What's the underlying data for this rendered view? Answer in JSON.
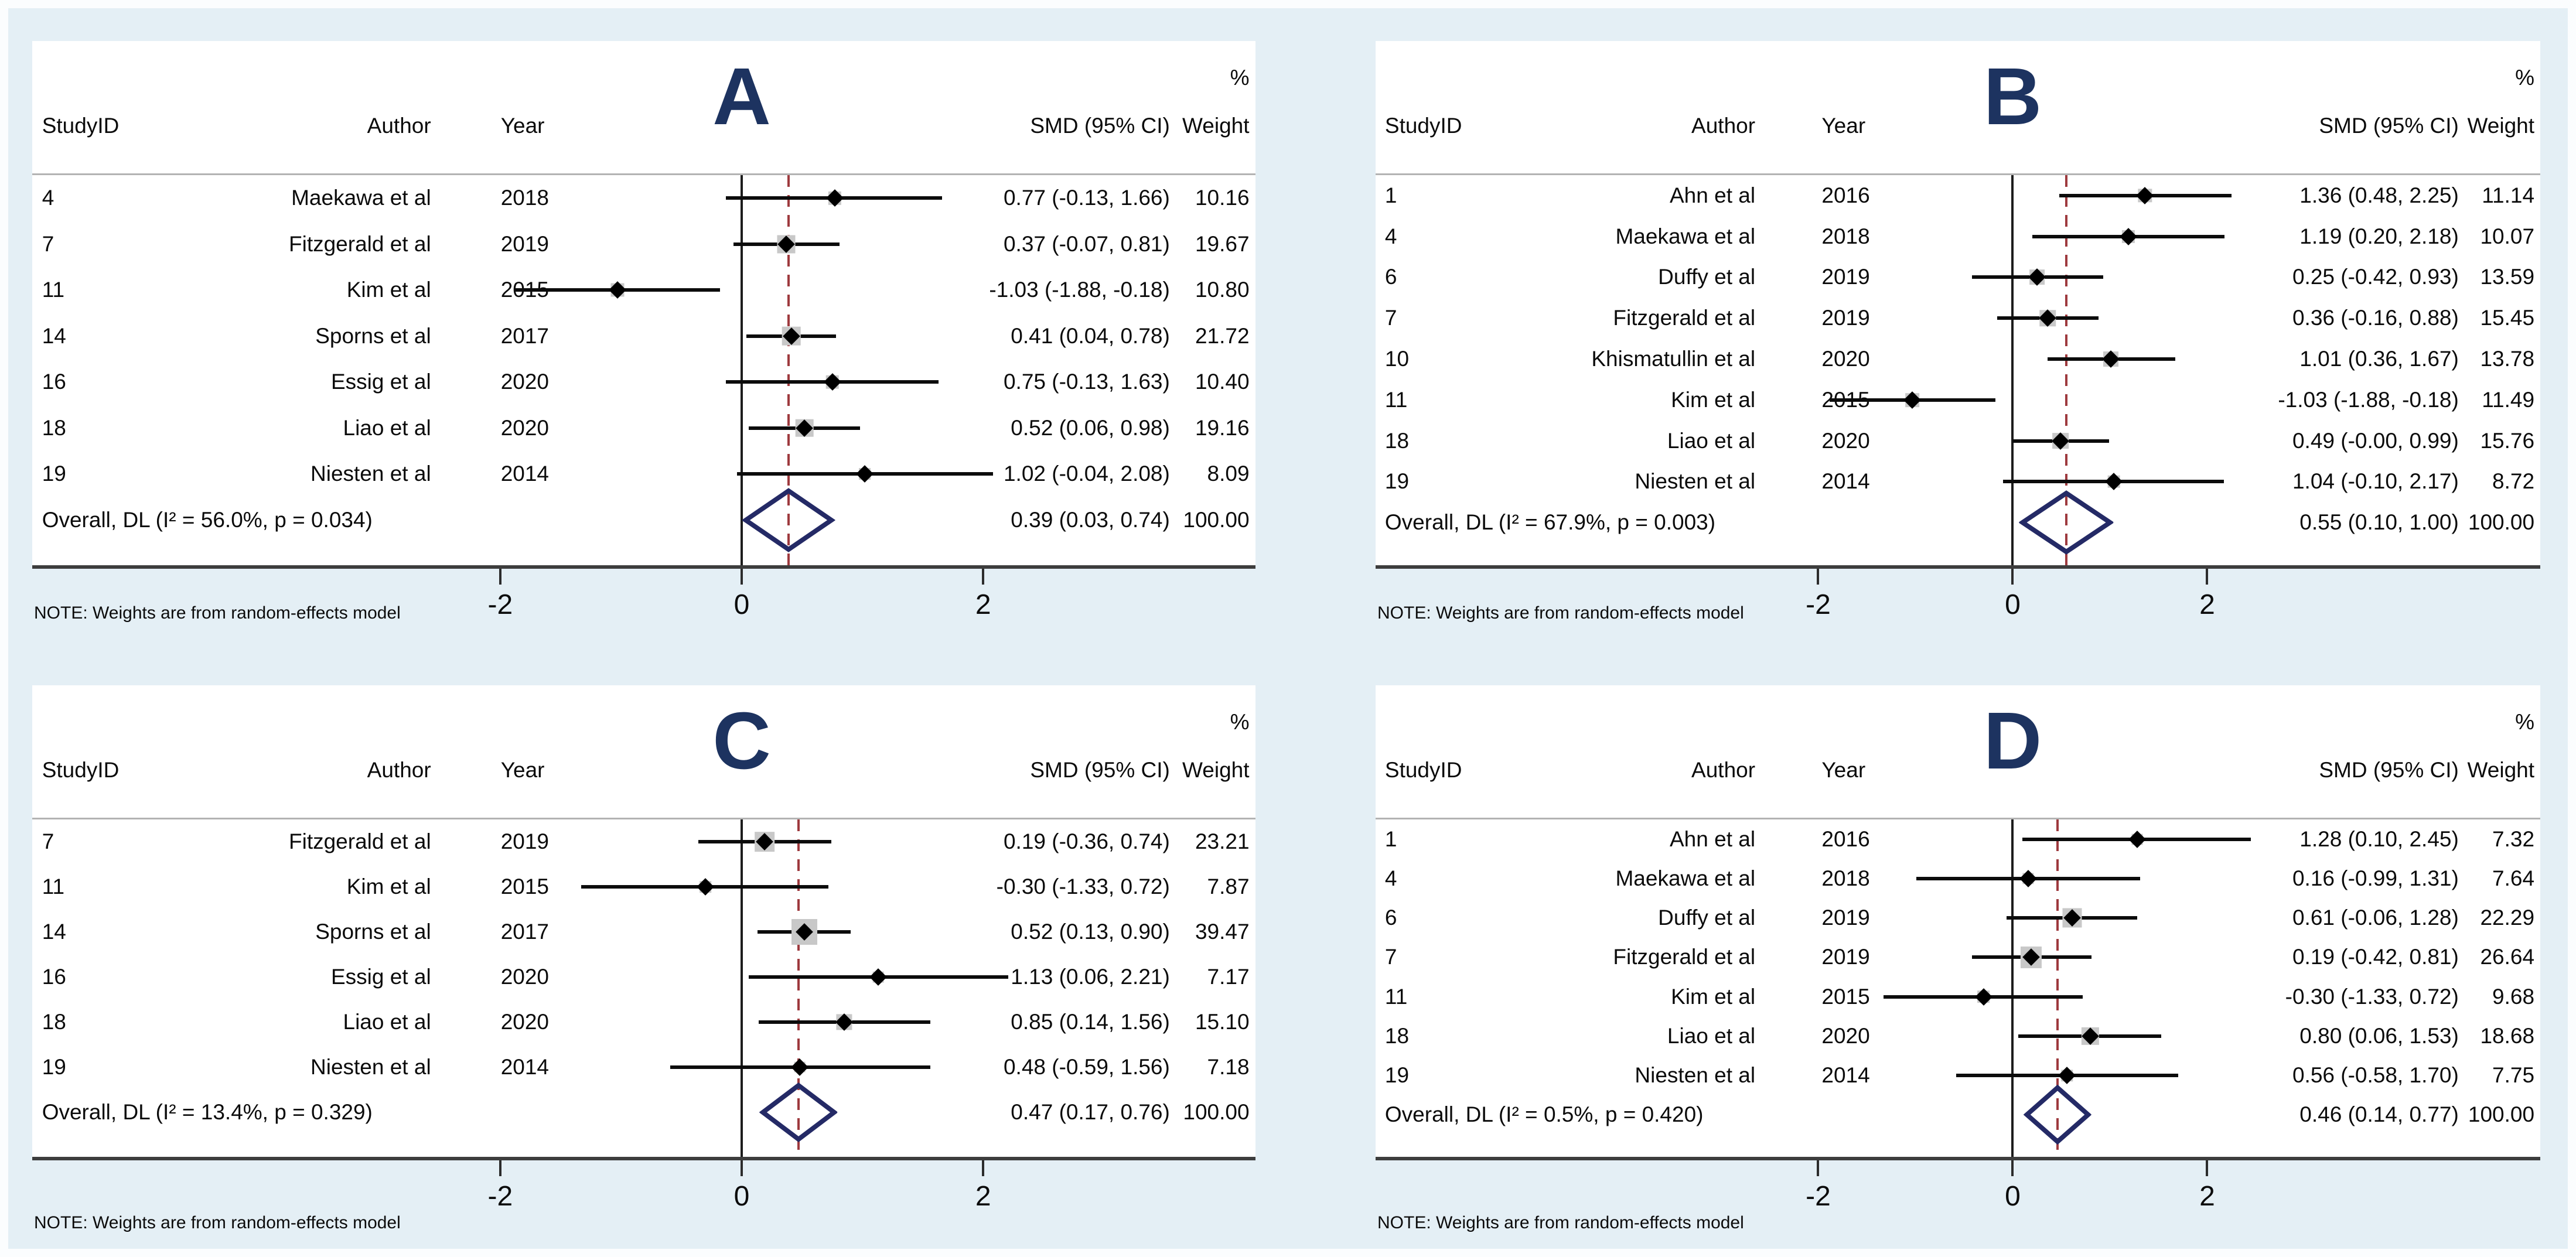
{
  "figure": {
    "note": "NOTE: Weights are from random-effects model",
    "columns": {
      "studyid": "StudyID",
      "author": "Author",
      "year": "Year",
      "smd": "SMD (95% CI)",
      "pct": "%",
      "weight": "Weight"
    },
    "colors": {
      "background": "#e4eff5",
      "panel": "#ffffff",
      "letter_navy": "#1d3360",
      "diamond_navy": "#242a66",
      "dashed_line_red": "#9e3a3e",
      "marker_black": "#000000",
      "weight_box_gray": "#c8c8c8",
      "axis_dark": "#3d3d3d",
      "header_rule_gray": "#b3b3b3"
    }
  },
  "chart_data": [
    {
      "type": "scatter",
      "subtype": "forest",
      "panel": "A",
      "x_ticks": [
        -2,
        0,
        2
      ],
      "xlim": [
        -3.3,
        3.6
      ],
      "overall": {
        "label": "Overall, DL (I² = 56.0%, p = 0.034)",
        "smd": 0.39,
        "ci_low": 0.03,
        "ci_high": 0.74,
        "smd_text": "0.39 (0.03, 0.74)",
        "weight_text": "100.00"
      },
      "studies": [
        {
          "study_id": "4",
          "author": "Maekawa et al",
          "year": "2018",
          "smd": 0.77,
          "ci_low": -0.13,
          "ci_high": 1.66,
          "smd_text": "0.77 (-0.13, 1.66)",
          "weight": 10.16,
          "weight_text": "10.16"
        },
        {
          "study_id": "7",
          "author": "Fitzgerald et al",
          "year": "2019",
          "smd": 0.37,
          "ci_low": -0.07,
          "ci_high": 0.81,
          "smd_text": "0.37 (-0.07, 0.81)",
          "weight": 19.67,
          "weight_text": "19.67"
        },
        {
          "study_id": "11",
          "author": "Kim et al",
          "year": "2015",
          "smd": -1.03,
          "ci_low": -1.88,
          "ci_high": -0.18,
          "smd_text": "-1.03 (-1.88, -0.18)",
          "weight": 10.8,
          "weight_text": "10.80"
        },
        {
          "study_id": "14",
          "author": "Sporns et al",
          "year": "2017",
          "smd": 0.41,
          "ci_low": 0.04,
          "ci_high": 0.78,
          "smd_text": "0.41 (0.04, 0.78)",
          "weight": 21.72,
          "weight_text": "21.72"
        },
        {
          "study_id": "16",
          "author": "Essig et al",
          "year": "2020",
          "smd": 0.75,
          "ci_low": -0.13,
          "ci_high": 1.63,
          "smd_text": "0.75 (-0.13, 1.63)",
          "weight": 10.4,
          "weight_text": "10.40"
        },
        {
          "study_id": "18",
          "author": "Liao et al",
          "year": "2020",
          "smd": 0.52,
          "ci_low": 0.06,
          "ci_high": 0.98,
          "smd_text": "0.52 (0.06, 0.98)",
          "weight": 19.16,
          "weight_text": "19.16"
        },
        {
          "study_id": "19",
          "author": "Niesten et al",
          "year": "2014",
          "smd": 1.02,
          "ci_low": -0.04,
          "ci_high": 2.08,
          "smd_text": "1.02 (-0.04, 2.08)",
          "weight": 8.09,
          "weight_text": "8.09"
        }
      ]
    },
    {
      "type": "scatter",
      "subtype": "forest",
      "panel": "B",
      "x_ticks": [
        -2,
        0,
        2
      ],
      "xlim": [
        -3.3,
        3.6
      ],
      "overall": {
        "label": "Overall, DL (I² = 67.9%, p = 0.003)",
        "smd": 0.55,
        "ci_low": 0.1,
        "ci_high": 1.0,
        "smd_text": "0.55 (0.10, 1.00)",
        "weight_text": "100.00"
      },
      "studies": [
        {
          "study_id": "1",
          "author": "Ahn et al",
          "year": "2016",
          "smd": 1.36,
          "ci_low": 0.48,
          "ci_high": 2.25,
          "smd_text": "1.36 (0.48, 2.25)",
          "weight": 11.14,
          "weight_text": "11.14"
        },
        {
          "study_id": "4",
          "author": "Maekawa et al",
          "year": "2018",
          "smd": 1.19,
          "ci_low": 0.2,
          "ci_high": 2.18,
          "smd_text": "1.19 (0.20, 2.18)",
          "weight": 10.07,
          "weight_text": "10.07"
        },
        {
          "study_id": "6",
          "author": "Duffy et al",
          "year": "2019",
          "smd": 0.25,
          "ci_low": -0.42,
          "ci_high": 0.93,
          "smd_text": "0.25 (-0.42, 0.93)",
          "weight": 13.59,
          "weight_text": "13.59"
        },
        {
          "study_id": "7",
          "author": "Fitzgerald et al",
          "year": "2019",
          "smd": 0.36,
          "ci_low": -0.16,
          "ci_high": 0.88,
          "smd_text": "0.36 (-0.16, 0.88)",
          "weight": 15.45,
          "weight_text": "15.45"
        },
        {
          "study_id": "10",
          "author": "Khismatullin et al",
          "year": "2020",
          "smd": 1.01,
          "ci_low": 0.36,
          "ci_high": 1.67,
          "smd_text": "1.01 (0.36, 1.67)",
          "weight": 13.78,
          "weight_text": "13.78"
        },
        {
          "study_id": "11",
          "author": "Kim et al",
          "year": "2015",
          "smd": -1.03,
          "ci_low": -1.88,
          "ci_high": -0.18,
          "smd_text": "-1.03 (-1.88, -0.18)",
          "weight": 11.49,
          "weight_text": "11.49"
        },
        {
          "study_id": "18",
          "author": "Liao et al",
          "year": "2020",
          "smd": 0.49,
          "ci_low": -0.0,
          "ci_high": 0.99,
          "smd_text": "0.49 (-0.00, 0.99)",
          "weight": 15.76,
          "weight_text": "15.76"
        },
        {
          "study_id": "19",
          "author": "Niesten et al",
          "year": "2014",
          "smd": 1.04,
          "ci_low": -0.1,
          "ci_high": 2.17,
          "smd_text": "1.04 (-0.10, 2.17)",
          "weight": 8.72,
          "weight_text": "8.72"
        }
      ]
    },
    {
      "type": "scatter",
      "subtype": "forest",
      "panel": "C",
      "x_ticks": [
        -2,
        0,
        2
      ],
      "xlim": [
        -3.3,
        3.6
      ],
      "overall": {
        "label": "Overall, DL (I² = 13.4%, p = 0.329)",
        "smd": 0.47,
        "ci_low": 0.17,
        "ci_high": 0.76,
        "smd_text": "0.47 (0.17, 0.76)",
        "weight_text": "100.00"
      },
      "studies": [
        {
          "study_id": "7",
          "author": "Fitzgerald et al",
          "year": "2019",
          "smd": 0.19,
          "ci_low": -0.36,
          "ci_high": 0.74,
          "smd_text": "0.19 (-0.36, 0.74)",
          "weight": 23.21,
          "weight_text": "23.21"
        },
        {
          "study_id": "11",
          "author": "Kim et al",
          "year": "2015",
          "smd": -0.3,
          "ci_low": -1.33,
          "ci_high": 0.72,
          "smd_text": "-0.30 (-1.33, 0.72)",
          "weight": 7.87,
          "weight_text": "7.87"
        },
        {
          "study_id": "14",
          "author": "Sporns et al",
          "year": "2017",
          "smd": 0.52,
          "ci_low": 0.13,
          "ci_high": 0.9,
          "smd_text": "0.52 (0.13, 0.90)",
          "weight": 39.47,
          "weight_text": "39.47"
        },
        {
          "study_id": "16",
          "author": "Essig et al",
          "year": "2020",
          "smd": 1.13,
          "ci_low": 0.06,
          "ci_high": 2.21,
          "smd_text": "1.13 (0.06, 2.21)",
          "weight": 7.17,
          "weight_text": "7.17"
        },
        {
          "study_id": "18",
          "author": "Liao et al",
          "year": "2020",
          "smd": 0.85,
          "ci_low": 0.14,
          "ci_high": 1.56,
          "smd_text": "0.85 (0.14, 1.56)",
          "weight": 15.1,
          "weight_text": "15.10"
        },
        {
          "study_id": "19",
          "author": "Niesten et al",
          "year": "2014",
          "smd": 0.48,
          "ci_low": -0.59,
          "ci_high": 1.56,
          "smd_text": "0.48 (-0.59, 1.56)",
          "weight": 7.18,
          "weight_text": "7.18"
        }
      ]
    },
    {
      "type": "scatter",
      "subtype": "forest",
      "panel": "D",
      "x_ticks": [
        -2,
        0,
        2
      ],
      "xlim": [
        -3.3,
        3.6
      ],
      "overall": {
        "label": "Overall, DL (I² = 0.5%, p = 0.420)",
        "smd": 0.46,
        "ci_low": 0.14,
        "ci_high": 0.77,
        "smd_text": "0.46 (0.14, 0.77)",
        "weight_text": "100.00"
      },
      "studies": [
        {
          "study_id": "1",
          "author": "Ahn et al",
          "year": "2016",
          "smd": 1.28,
          "ci_low": 0.1,
          "ci_high": 2.45,
          "smd_text": "1.28 (0.10, 2.45)",
          "weight": 7.32,
          "weight_text": "7.32"
        },
        {
          "study_id": "4",
          "author": "Maekawa et al",
          "year": "2018",
          "smd": 0.16,
          "ci_low": -0.99,
          "ci_high": 1.31,
          "smd_text": "0.16 (-0.99, 1.31)",
          "weight": 7.64,
          "weight_text": "7.64"
        },
        {
          "study_id": "6",
          "author": "Duffy et al",
          "year": "2019",
          "smd": 0.61,
          "ci_low": -0.06,
          "ci_high": 1.28,
          "smd_text": "0.61 (-0.06, 1.28)",
          "weight": 22.29,
          "weight_text": "22.29"
        },
        {
          "study_id": "7",
          "author": "Fitzgerald et al",
          "year": "2019",
          "smd": 0.19,
          "ci_low": -0.42,
          "ci_high": 0.81,
          "smd_text": "0.19 (-0.42, 0.81)",
          "weight": 26.64,
          "weight_text": "26.64"
        },
        {
          "study_id": "11",
          "author": "Kim et al",
          "year": "2015",
          "smd": -0.3,
          "ci_low": -1.33,
          "ci_high": 0.72,
          "smd_text": "-0.30 (-1.33, 0.72)",
          "weight": 9.68,
          "weight_text": "9.68"
        },
        {
          "study_id": "18",
          "author": "Liao et al",
          "year": "2020",
          "smd": 0.8,
          "ci_low": 0.06,
          "ci_high": 1.53,
          "smd_text": "0.80 (0.06, 1.53)",
          "weight": 18.68,
          "weight_text": "18.68"
        },
        {
          "study_id": "19",
          "author": "Niesten et al",
          "year": "2014",
          "smd": 0.56,
          "ci_low": -0.58,
          "ci_high": 1.7,
          "smd_text": "0.56 (-0.58, 1.70)",
          "weight": 7.75,
          "weight_text": "7.75"
        }
      ]
    }
  ]
}
